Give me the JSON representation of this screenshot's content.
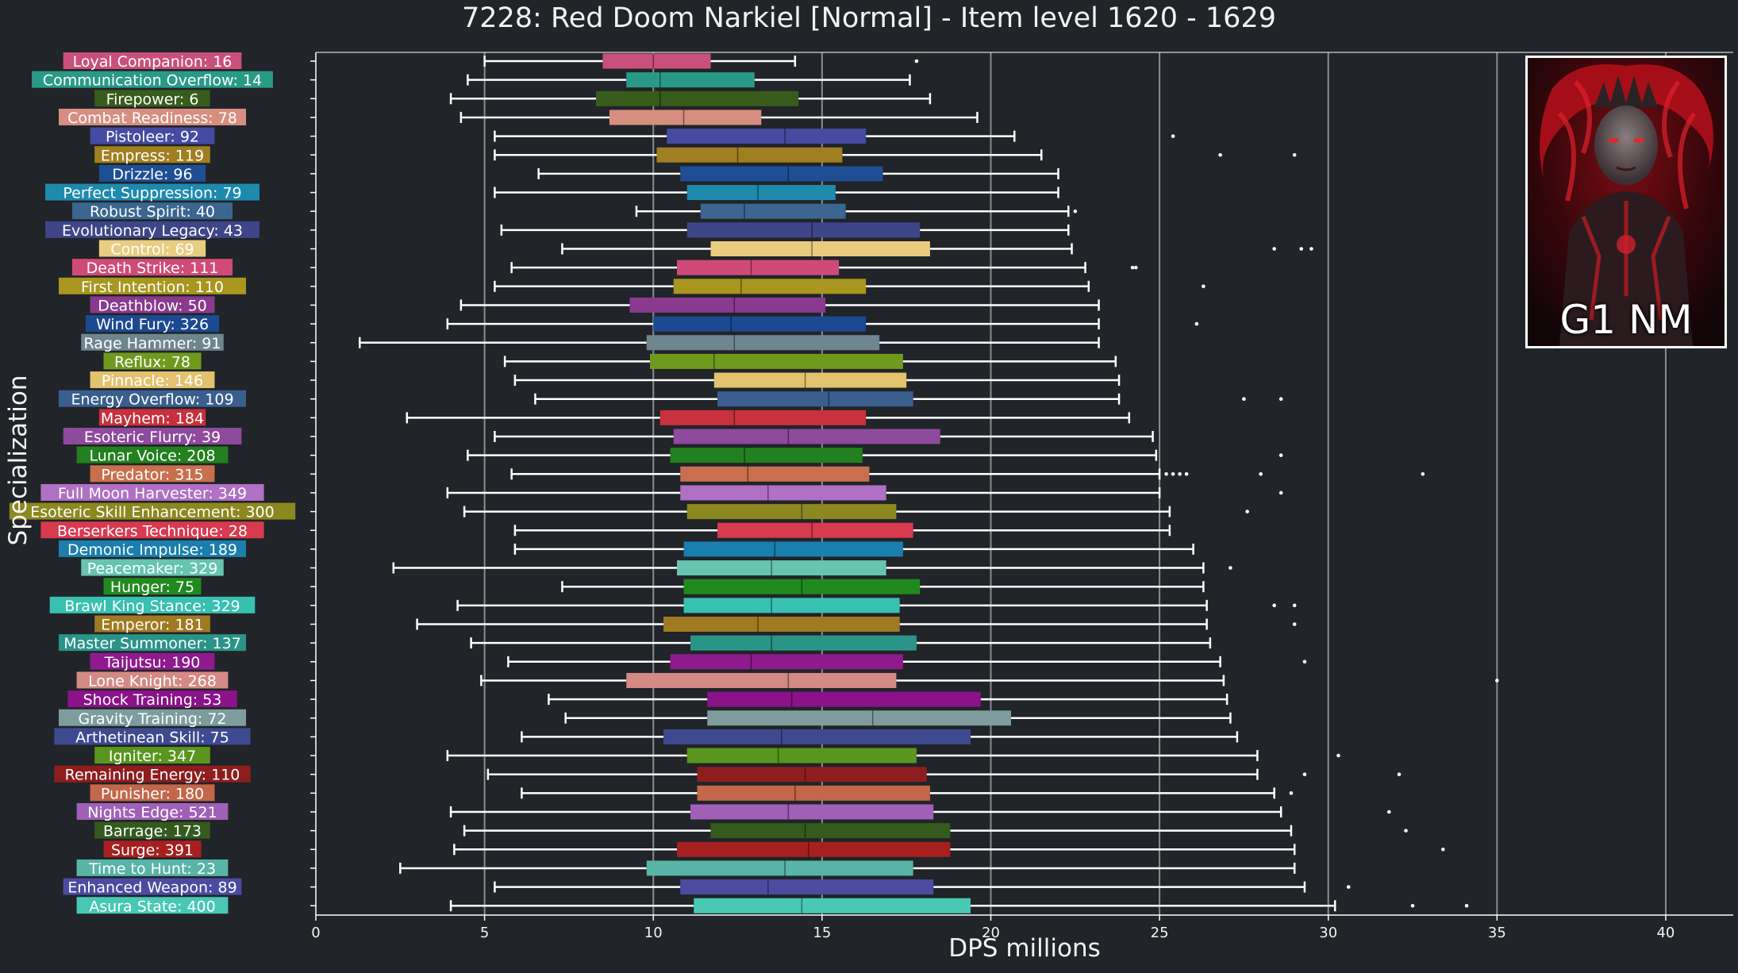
{
  "chart_data": {
    "type": "box",
    "title": "7228: Red Doom Narkiel [Normal] - Item level 1620 - 1629",
    "xlabel": "DPS millions",
    "ylabel": "Specialization",
    "xlim": [
      0,
      42
    ],
    "xticks": [
      0,
      5,
      10,
      15,
      20,
      25,
      30,
      35,
      40
    ],
    "grid": "vertical",
    "colors": {
      "background": "#212428",
      "axis": "#ffffff",
      "grid": "#8a8d91",
      "text": "#f2f2f2"
    },
    "series": [
      {
        "label": "Loyal Companion: 16",
        "color": "#c9507a",
        "whisker_low": 5.0,
        "q1": 8.5,
        "median": 10.0,
        "q3": 11.7,
        "whisker_high": 14.2,
        "outliers": [
          17.8
        ]
      },
      {
        "label": "Communication Overflow: 14",
        "color": "#2a9a88",
        "whisker_low": 4.5,
        "q1": 9.2,
        "median": 10.2,
        "q3": 13.0,
        "whisker_high": 17.6,
        "outliers": []
      },
      {
        "label": "Firepower: 6",
        "color": "#375c1c",
        "whisker_low": 4.0,
        "q1": 8.3,
        "median": 10.2,
        "q3": 14.3,
        "whisker_high": 18.2,
        "outliers": []
      },
      {
        "label": "Combat Readiness: 78",
        "color": "#d78e80",
        "whisker_low": 4.3,
        "q1": 8.7,
        "median": 10.9,
        "q3": 13.2,
        "whisker_high": 19.6,
        "outliers": []
      },
      {
        "label": "Pistoleer: 92",
        "color": "#454ba0",
        "whisker_low": 5.3,
        "q1": 10.4,
        "median": 13.9,
        "q3": 16.3,
        "whisker_high": 20.7,
        "outliers": [
          25.4
        ]
      },
      {
        "label": "Empress: 119",
        "color": "#a07f20",
        "whisker_low": 5.3,
        "q1": 10.1,
        "median": 12.5,
        "q3": 15.6,
        "whisker_high": 21.5,
        "outliers": [
          26.8,
          29.0
        ]
      },
      {
        "label": "Drizzle: 96",
        "color": "#1e4f94",
        "whisker_low": 6.6,
        "q1": 10.8,
        "median": 14.0,
        "q3": 16.8,
        "whisker_high": 22.0,
        "outliers": []
      },
      {
        "label": "Perfect Suppression: 79",
        "color": "#1e8aad",
        "whisker_low": 5.3,
        "q1": 11.0,
        "median": 13.1,
        "q3": 15.4,
        "whisker_high": 22.0,
        "outliers": []
      },
      {
        "label": "Robust Spirit: 40",
        "color": "#3a6690",
        "whisker_low": 9.5,
        "q1": 11.4,
        "median": 12.7,
        "q3": 15.7,
        "whisker_high": 22.3,
        "outliers": [
          22.5
        ]
      },
      {
        "label": "Evolutionary Legacy: 43",
        "color": "#3e4588",
        "whisker_low": 5.5,
        "q1": 11.0,
        "median": 14.7,
        "q3": 17.9,
        "whisker_high": 22.3,
        "outliers": []
      },
      {
        "label": "Control: 69",
        "color": "#e8cc80",
        "whisker_low": 7.3,
        "q1": 11.7,
        "median": 14.7,
        "q3": 18.2,
        "whisker_high": 22.4,
        "outliers": [
          28.4,
          29.2,
          29.5
        ]
      },
      {
        "label": "Death Strike: 111",
        "color": "#d04a78",
        "whisker_low": 5.8,
        "q1": 10.7,
        "median": 12.9,
        "q3": 15.5,
        "whisker_high": 22.8,
        "outliers": [
          24.2,
          24.3
        ]
      },
      {
        "label": "First Intention: 110",
        "color": "#a8961e",
        "whisker_low": 5.3,
        "q1": 10.6,
        "median": 12.6,
        "q3": 16.3,
        "whisker_high": 22.9,
        "outliers": [
          26.3
        ]
      },
      {
        "label": "Deathblow: 50",
        "color": "#8a3a8e",
        "whisker_low": 4.3,
        "q1": 9.3,
        "median": 12.4,
        "q3": 15.1,
        "whisker_high": 23.2,
        "outliers": []
      },
      {
        "label": "Wind Fury: 326",
        "color": "#1c4a92",
        "whisker_low": 3.9,
        "q1": 10.0,
        "median": 12.3,
        "q3": 16.3,
        "whisker_high": 23.2,
        "outliers": [
          26.1
        ]
      },
      {
        "label": "Rage Hammer: 91",
        "color": "#6e8690",
        "whisker_low": 1.3,
        "q1": 9.8,
        "median": 12.4,
        "q3": 16.7,
        "whisker_high": 23.2,
        "outliers": []
      },
      {
        "label": "Reflux: 78",
        "color": "#6e9a1e",
        "whisker_low": 5.6,
        "q1": 9.9,
        "median": 11.8,
        "q3": 17.4,
        "whisker_high": 23.7,
        "outliers": []
      },
      {
        "label": "Pinnacle: 146",
        "color": "#e3c26e",
        "whisker_low": 5.9,
        "q1": 11.8,
        "median": 14.5,
        "q3": 17.5,
        "whisker_high": 23.8,
        "outliers": []
      },
      {
        "label": "Energy Overflow: 109",
        "color": "#3a5f8e",
        "whisker_low": 6.5,
        "q1": 11.9,
        "median": 15.2,
        "q3": 17.7,
        "whisker_high": 23.8,
        "outliers": [
          27.5,
          28.6
        ]
      },
      {
        "label": "Mayhem: 184",
        "color": "#c8303e",
        "whisker_low": 2.7,
        "q1": 10.2,
        "median": 12.4,
        "q3": 16.3,
        "whisker_high": 24.1,
        "outliers": []
      },
      {
        "label": "Esoteric Flurry: 39",
        "color": "#8e4a9c",
        "whisker_low": 5.3,
        "q1": 10.6,
        "median": 14.0,
        "q3": 18.5,
        "whisker_high": 24.8,
        "outliers": []
      },
      {
        "label": "Lunar Voice: 208",
        "color": "#22801e",
        "whisker_low": 4.5,
        "q1": 10.5,
        "median": 12.7,
        "q3": 16.2,
        "whisker_high": 24.9,
        "outliers": [
          28.6
        ]
      },
      {
        "label": "Predator: 315",
        "color": "#c8704e",
        "whisker_low": 5.8,
        "q1": 10.8,
        "median": 12.8,
        "q3": 16.4,
        "whisker_high": 25.0,
        "outliers": [
          25.2,
          25.4,
          25.6,
          25.8,
          28.0,
          32.8
        ]
      },
      {
        "label": "Full Moon Harvester: 349",
        "color": "#b070c4",
        "whisker_low": 3.9,
        "q1": 10.8,
        "median": 13.4,
        "q3": 16.9,
        "whisker_high": 25.0,
        "outliers": [
          28.6
        ]
      },
      {
        "label": "Esoteric Skill Enhancement: 300",
        "color": "#8c8820",
        "whisker_low": 4.4,
        "q1": 11.0,
        "median": 14.4,
        "q3": 17.2,
        "whisker_high": 25.3,
        "outliers": [
          27.6
        ]
      },
      {
        "label": "Berserkers Technique: 28",
        "color": "#d83a50",
        "whisker_low": 5.9,
        "q1": 11.9,
        "median": 14.7,
        "q3": 17.7,
        "whisker_high": 25.3,
        "outliers": []
      },
      {
        "label": "Demonic Impulse: 189",
        "color": "#1a7eae",
        "whisker_low": 5.9,
        "q1": 10.9,
        "median": 13.6,
        "q3": 17.4,
        "whisker_high": 26.0,
        "outliers": []
      },
      {
        "label": "Peacemaker: 329",
        "color": "#66c4b0",
        "whisker_low": 2.3,
        "q1": 10.7,
        "median": 13.5,
        "q3": 16.9,
        "whisker_high": 26.3,
        "outliers": [
          27.1
        ]
      },
      {
        "label": "Hunger: 75",
        "color": "#208a1e",
        "whisker_low": 7.3,
        "q1": 10.9,
        "median": 14.4,
        "q3": 17.9,
        "whisker_high": 26.3,
        "outliers": []
      },
      {
        "label": "Brawl King Stance: 329",
        "color": "#38c0b0",
        "whisker_low": 4.2,
        "q1": 10.9,
        "median": 13.5,
        "q3": 17.3,
        "whisker_high": 26.4,
        "outliers": [
          28.4,
          29.0
        ]
      },
      {
        "label": "Emperor: 181",
        "color": "#a07a22",
        "whisker_low": 3.0,
        "q1": 10.3,
        "median": 13.1,
        "q3": 17.3,
        "whisker_high": 26.4,
        "outliers": [
          29.0
        ]
      },
      {
        "label": "Master Summoner: 137",
        "color": "#2a9488",
        "whisker_low": 4.6,
        "q1": 11.1,
        "median": 13.5,
        "q3": 17.8,
        "whisker_high": 26.5,
        "outliers": []
      },
      {
        "label": "Taijutsu: 190",
        "color": "#8e1a8e",
        "whisker_low": 5.7,
        "q1": 10.5,
        "median": 12.9,
        "q3": 17.4,
        "whisker_high": 26.8,
        "outliers": [
          29.3
        ]
      },
      {
        "label": "Lone Knight: 268",
        "color": "#d48a84",
        "whisker_low": 4.9,
        "q1": 9.2,
        "median": 14.0,
        "q3": 17.2,
        "whisker_high": 26.9,
        "outliers": [
          35.0
        ]
      },
      {
        "label": "Shock Training: 53",
        "color": "#8a128a",
        "whisker_low": 6.9,
        "q1": 11.6,
        "median": 14.1,
        "q3": 19.7,
        "whisker_high": 27.0,
        "outliers": []
      },
      {
        "label": "Gravity Training: 72",
        "color": "#7e9c9e",
        "whisker_low": 7.4,
        "q1": 11.6,
        "median": 16.5,
        "q3": 20.6,
        "whisker_high": 27.1,
        "outliers": []
      },
      {
        "label": "Arthetinean Skill: 75",
        "color": "#3e4a90",
        "whisker_low": 6.1,
        "q1": 10.3,
        "median": 13.8,
        "q3": 19.4,
        "whisker_high": 27.3,
        "outliers": []
      },
      {
        "label": "Igniter: 347",
        "color": "#5a961e",
        "whisker_low": 3.9,
        "q1": 11.0,
        "median": 13.7,
        "q3": 17.8,
        "whisker_high": 27.9,
        "outliers": [
          30.3
        ]
      },
      {
        "label": "Remaining Energy: 110",
        "color": "#8e1e1e",
        "whisker_low": 5.1,
        "q1": 11.3,
        "median": 14.5,
        "q3": 18.1,
        "whisker_high": 27.9,
        "outliers": [
          29.3,
          32.1
        ]
      },
      {
        "label": "Punisher: 180",
        "color": "#c4664a",
        "whisker_low": 6.1,
        "q1": 11.3,
        "median": 14.2,
        "q3": 18.2,
        "whisker_high": 28.4,
        "outliers": [
          28.9
        ]
      },
      {
        "label": "Nights Edge: 521",
        "color": "#a060b8",
        "whisker_low": 4.0,
        "q1": 11.1,
        "median": 14.0,
        "q3": 18.3,
        "whisker_high": 28.6,
        "outliers": [
          31.8
        ]
      },
      {
        "label": "Barrage: 173",
        "color": "#345a1e",
        "whisker_low": 4.4,
        "q1": 11.7,
        "median": 14.5,
        "q3": 18.8,
        "whisker_high": 28.9,
        "outliers": [
          32.3
        ]
      },
      {
        "label": "Surge: 391",
        "color": "#a62020",
        "whisker_low": 4.1,
        "q1": 10.7,
        "median": 14.6,
        "q3": 18.8,
        "whisker_high": 29.0,
        "outliers": [
          33.4
        ]
      },
      {
        "label": "Time to Hunt: 23",
        "color": "#58b4a6",
        "whisker_low": 2.5,
        "q1": 9.8,
        "median": 13.9,
        "q3": 17.7,
        "whisker_high": 29.0,
        "outliers": []
      },
      {
        "label": "Enhanced Weapon: 89",
        "color": "#4a4ca2",
        "whisker_low": 5.3,
        "q1": 10.8,
        "median": 13.4,
        "q3": 18.3,
        "whisker_high": 29.3,
        "outliers": [
          30.6
        ]
      },
      {
        "label": "Asura State: 400",
        "color": "#48c8b4",
        "whisker_low": 4.0,
        "q1": 11.2,
        "median": 14.4,
        "q3": 19.4,
        "whisker_high": 30.2,
        "outliers": [
          32.5,
          34.1
        ]
      }
    ]
  },
  "badge": {
    "text": "G1 NM"
  }
}
